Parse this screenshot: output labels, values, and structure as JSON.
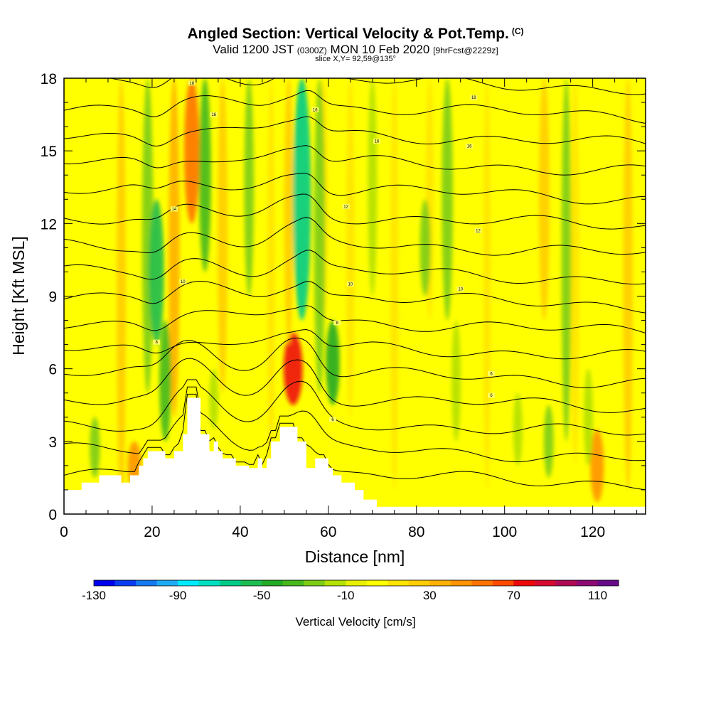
{
  "header": {
    "title_main": "Angled Section: Vertical Velocity & Pot.Temp.",
    "title_mark": "(C)",
    "valid_a": "Valid 1200 JST",
    "valid_zone": "(0300Z)",
    "valid_b": "MON 10 Feb 2020",
    "valid_fcst": "[9hrFcst@2229z]",
    "slice": "slice X,Y= 92,59@135°"
  },
  "chart_data": {
    "type": "heatmap",
    "xlabel": "Distance [nm]",
    "ylabel": "Height [Kft MSL]",
    "xlim": [
      0,
      132
    ],
    "ylim": [
      0,
      18
    ],
    "x_ticks": [
      0,
      20,
      40,
      60,
      80,
      100,
      120
    ],
    "y_ticks": [
      0,
      3,
      6,
      9,
      12,
      15,
      18
    ],
    "colorbar": {
      "title": "Vertical Velocity [cm/s]",
      "tick_labels": [
        -130,
        -90,
        -50,
        -10,
        30,
        70,
        110
      ],
      "levels": [
        -130,
        -120,
        -110,
        -100,
        -90,
        -80,
        -70,
        -60,
        -50,
        -40,
        -30,
        -20,
        -10,
        0,
        10,
        20,
        30,
        40,
        50,
        60,
        70,
        80,
        90,
        100,
        110,
        120
      ],
      "colors": [
        "#0000ee",
        "#0a3cf0",
        "#1478f0",
        "#1eaaf5",
        "#00eaff",
        "#00e0c0",
        "#00cc88",
        "#1cbc50",
        "#22aa22",
        "#44b81c",
        "#7ccc14",
        "#b4e000",
        "#e6f000",
        "#ffff00",
        "#ffe400",
        "#ffcc00",
        "#ffb000",
        "#ff9400",
        "#ff7400",
        "#ff4a00",
        "#ee0a0a",
        "#d40a30",
        "#ae0a56",
        "#8c0a74",
        "#660a88"
      ]
    },
    "background_level_cm_s": 5,
    "updraft_bands": [
      {
        "x": 2,
        "z0": 2,
        "z1": 18,
        "w": 8
      },
      {
        "x": 13,
        "z0": 0,
        "z1": 18,
        "w": 20
      },
      {
        "x": 16,
        "z0": 1,
        "z1": 3,
        "w": 45
      },
      {
        "x": 25,
        "z0": 4,
        "z1": 18,
        "w": 30
      },
      {
        "x": 29,
        "z0": 12,
        "z1": 18,
        "w": 55
      },
      {
        "x": 36,
        "z0": 5,
        "z1": 18,
        "w": 24
      },
      {
        "x": 47,
        "z0": 2,
        "z1": 18,
        "w": 12
      },
      {
        "x": 52,
        "z0": 4.5,
        "z1": 7.5,
        "w": 75
      },
      {
        "x": 51,
        "z0": 7,
        "z1": 18,
        "w": 20
      },
      {
        "x": 59,
        "z0": 8,
        "z1": 18,
        "w": 12
      },
      {
        "x": 65,
        "z0": 4,
        "z1": 18,
        "w": 16
      },
      {
        "x": 75,
        "z0": 1,
        "z1": 18,
        "w": 14
      },
      {
        "x": 83,
        "z0": 8,
        "z1": 18,
        "w": 14
      },
      {
        "x": 96,
        "z0": 1,
        "z1": 18,
        "w": 10
      },
      {
        "x": 109,
        "z0": 8,
        "z1": 18,
        "w": 28
      },
      {
        "x": 116,
        "z0": 2,
        "z1": 18,
        "w": 15
      },
      {
        "x": 121,
        "z0": 0.5,
        "z1": 3.5,
        "w": 45
      },
      {
        "x": 128,
        "z0": 1,
        "z1": 18,
        "w": 22
      }
    ],
    "downdraft_bands": [
      {
        "x": 7,
        "z0": 1.5,
        "z1": 4,
        "w": -25
      },
      {
        "x": 19,
        "z0": 5,
        "z1": 18,
        "w": -30
      },
      {
        "x": 21,
        "z0": 7,
        "z1": 13,
        "w": -52
      },
      {
        "x": 23,
        "z0": 3,
        "z1": 8,
        "w": -35
      },
      {
        "x": 32,
        "z0": 10,
        "z1": 18,
        "w": -35
      },
      {
        "x": 34,
        "z0": 3.5,
        "z1": 6,
        "w": -20
      },
      {
        "x": 42,
        "z0": 9,
        "z1": 18,
        "w": -22
      },
      {
        "x": 54,
        "z0": 8,
        "z1": 18,
        "w": -70
      },
      {
        "x": 58,
        "z0": 5,
        "z1": 18,
        "w": -30
      },
      {
        "x": 61,
        "z0": 4.5,
        "z1": 8,
        "w": -45
      },
      {
        "x": 70,
        "z0": 9,
        "z1": 18,
        "w": -20
      },
      {
        "x": 82,
        "z0": 9,
        "z1": 13,
        "w": -28
      },
      {
        "x": 87,
        "z0": 8,
        "z1": 18,
        "w": -30
      },
      {
        "x": 89,
        "z0": 3,
        "z1": 8,
        "w": -20
      },
      {
        "x": 103,
        "z0": 2,
        "z1": 5,
        "w": -20
      },
      {
        "x": 110,
        "z0": 1.5,
        "z1": 4.5,
        "w": -22
      },
      {
        "x": 114,
        "z0": 3,
        "z1": 18,
        "w": -22
      },
      {
        "x": 119,
        "z0": 2,
        "z1": 6,
        "w": -20
      }
    ],
    "terrain_kft": [
      [
        0,
        1.0
      ],
      [
        4,
        1.0
      ],
      [
        4,
        1.3
      ],
      [
        8,
        1.3
      ],
      [
        8,
        1.6
      ],
      [
        13,
        1.6
      ],
      [
        13,
        1.3
      ],
      [
        15,
        1.3
      ],
      [
        15,
        1.6
      ],
      [
        17,
        1.6
      ],
      [
        17,
        2.0
      ],
      [
        18,
        2.0
      ],
      [
        18,
        2.3
      ],
      [
        19,
        2.3
      ],
      [
        19,
        2.6
      ],
      [
        23,
        2.6
      ],
      [
        23,
        2.3
      ],
      [
        25,
        2.3
      ],
      [
        25,
        2.6
      ],
      [
        27,
        2.6
      ],
      [
        27,
        3.3
      ],
      [
        28,
        3.3
      ],
      [
        28,
        4.8
      ],
      [
        31,
        4.8
      ],
      [
        31,
        3.3
      ],
      [
        33,
        3.3
      ],
      [
        33,
        2.6
      ],
      [
        34,
        2.6
      ],
      [
        34,
        3.0
      ],
      [
        35,
        3.0
      ],
      [
        35,
        2.6
      ],
      [
        36,
        2.6
      ],
      [
        36,
        2.3
      ],
      [
        39,
        2.3
      ],
      [
        39,
        2.0
      ],
      [
        42,
        2.0
      ],
      [
        42,
        1.9
      ],
      [
        44,
        1.9
      ],
      [
        44,
        2.3
      ],
      [
        45,
        2.3
      ],
      [
        45,
        1.9
      ],
      [
        46,
        1.9
      ],
      [
        46,
        2.3
      ],
      [
        47,
        2.3
      ],
      [
        47,
        3.0
      ],
      [
        49,
        3.0
      ],
      [
        49,
        3.6
      ],
      [
        53,
        3.6
      ],
      [
        53,
        3.0
      ],
      [
        55,
        3.0
      ],
      [
        55,
        1.9
      ],
      [
        57,
        1.9
      ],
      [
        57,
        2.3
      ],
      [
        60,
        2.3
      ],
      [
        60,
        1.9
      ],
      [
        61,
        1.9
      ],
      [
        61,
        1.6
      ],
      [
        63,
        1.6
      ],
      [
        63,
        1.3
      ],
      [
        66,
        1.3
      ],
      [
        66,
        1.0
      ],
      [
        68,
        1.0
      ],
      [
        68,
        0.6
      ],
      [
        71,
        0.6
      ],
      [
        71,
        0.3
      ],
      [
        132,
        0.3
      ]
    ],
    "theta_labels": [
      {
        "x": 29,
        "z": 17.8,
        "text": "18"
      },
      {
        "x": 34,
        "z": 16.5,
        "text": "16"
      },
      {
        "x": 57,
        "z": 16.7,
        "text": "16"
      },
      {
        "x": 71,
        "z": 15.4,
        "text": "16"
      },
      {
        "x": 93,
        "z": 17.2,
        "text": "18"
      },
      {
        "x": 92,
        "z": 15.2,
        "text": "16"
      },
      {
        "x": 25,
        "z": 12.6,
        "text": "14"
      },
      {
        "x": 64,
        "z": 12.7,
        "text": "12"
      },
      {
        "x": 94,
        "z": 11.7,
        "text": "12"
      },
      {
        "x": 27,
        "z": 9.6,
        "text": "10"
      },
      {
        "x": 65,
        "z": 9.5,
        "text": "10"
      },
      {
        "x": 90,
        "z": 9.3,
        "text": "10"
      },
      {
        "x": 21,
        "z": 7.1,
        "text": "8"
      },
      {
        "x": 62,
        "z": 7.9,
        "text": "8"
      },
      {
        "x": 97,
        "z": 5.8,
        "text": "6"
      },
      {
        "x": 97,
        "z": 4.9,
        "text": "6"
      },
      {
        "x": 61,
        "z": 3.9,
        "text": "6"
      }
    ]
  }
}
